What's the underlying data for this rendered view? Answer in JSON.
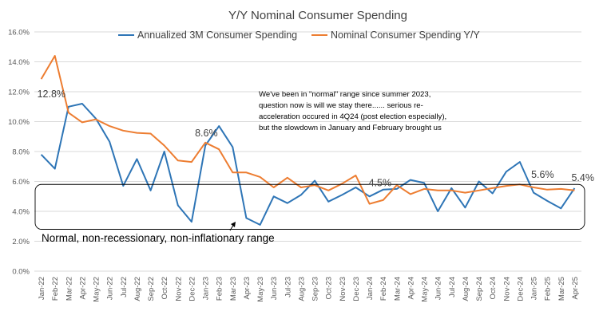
{
  "chart_data": {
    "type": "line",
    "title": "Y/Y Nominal Consumer Spending",
    "ylim": [
      0,
      16
    ],
    "yticks": [
      "0.0%",
      "2.0%",
      "4.0%",
      "6.0%",
      "8.0%",
      "10.0%",
      "12.0%",
      "14.0%",
      "16.0%"
    ],
    "grid": true,
    "legend": "top",
    "categories": [
      "Jan-22",
      "Feb-22",
      "Mar-22",
      "Apr-22",
      "May-22",
      "Jun-22",
      "Jul-22",
      "Aug-22",
      "Sep-22",
      "Oct-22",
      "Nov-22",
      "Dec-22",
      "Jan-23",
      "Feb-23",
      "Mar-23",
      "Apr-23",
      "May-23",
      "Jun-23",
      "Jul-23",
      "Aug-23",
      "Sep-23",
      "Oct-23",
      "Nov-23",
      "Dec-23",
      "Jan-24",
      "Feb-24",
      "Mar-24",
      "Apr-24",
      "May-24",
      "Jun-24",
      "Jul-24",
      "Aug-24",
      "Sep-24",
      "Oct-24",
      "Nov-24",
      "Dec-24",
      "Jan-25",
      "Feb-25",
      "Mar-25",
      "Apr-25"
    ],
    "series": [
      {
        "name": "Annualized 3M Consumer Spending",
        "color": "#2e75b6",
        "values": [
          7.8,
          6.85,
          11.0,
          11.2,
          10.2,
          8.65,
          5.7,
          7.5,
          5.4,
          8.0,
          4.4,
          3.3,
          8.4,
          9.7,
          8.3,
          3.55,
          3.1,
          5.0,
          4.55,
          5.1,
          6.05,
          4.65,
          5.1,
          5.6,
          5.0,
          5.45,
          5.5,
          6.1,
          5.9,
          4.0,
          5.55,
          4.25,
          6.0,
          5.2,
          6.65,
          7.3,
          5.25,
          4.7,
          4.2,
          5.55
        ]
      },
      {
        "name": "Nominal Consumer Spending Y/Y",
        "color": "#ed7d31",
        "values": [
          12.85,
          14.4,
          10.6,
          9.95,
          10.15,
          9.7,
          9.4,
          9.25,
          9.2,
          8.4,
          7.4,
          7.3,
          8.6,
          8.15,
          6.6,
          6.6,
          6.3,
          5.6,
          6.25,
          5.6,
          5.75,
          5.4,
          5.85,
          6.4,
          4.5,
          4.75,
          5.75,
          5.15,
          5.5,
          5.4,
          5.4,
          5.25,
          5.4,
          5.55,
          5.7,
          5.8,
          5.6,
          5.45,
          5.5,
          5.4
        ]
      }
    ],
    "data_labels": [
      {
        "text": "12.8%",
        "category": "Jan-22"
      },
      {
        "text": "8.6%",
        "category": "Jan-23"
      },
      {
        "text": "4.5%",
        "category": "Jan-24"
      },
      {
        "text": "5.6%",
        "category": "Jan-25"
      },
      {
        "text": "5.4%",
        "category": "Apr-25"
      }
    ],
    "annotations": {
      "note_lines": [
        "We've been in \"normal\" range since summer 2023,",
        "question now is will we stay there...... serious re-",
        "acceleration occured in 4Q24 (post election especially),",
        "but the slowdown in January and February brought us"
      ],
      "range_label": "Normal, non-recessionary, non-inflationary range",
      "range_band": [
        2.8,
        5.8
      ]
    }
  }
}
